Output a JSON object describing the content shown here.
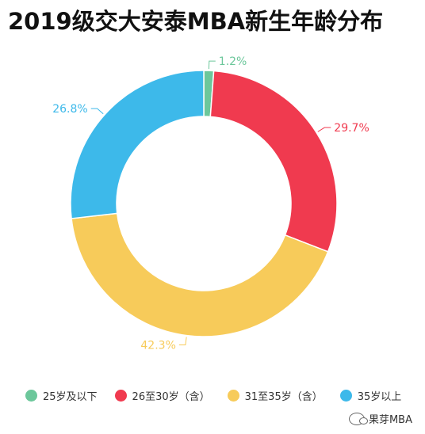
{
  "title": "2019级交大安泰MBA新生年龄分布",
  "chart_data": {
    "type": "pie",
    "title": "2019级交大安泰MBA新生年龄分布",
    "donut": true,
    "legend_position": "bottom",
    "slices": [
      {
        "label": "25岁及以下",
        "value": 1.2,
        "value_label": "1.2%",
        "color": "#6cc79b"
      },
      {
        "label": "26至30岁（含）",
        "value": 29.7,
        "value_label": "29.7%",
        "color": "#f03a4f"
      },
      {
        "label": "31至35岁（含）",
        "value": 42.3,
        "value_label": "42.3%",
        "color": "#f7cb5a"
      },
      {
        "label": "35岁以上",
        "value": 26.8,
        "value_label": "26.8%",
        "color": "#3db9ea"
      }
    ]
  },
  "watermark": {
    "text": "果芽MBA",
    "icon": "wechat-icon"
  }
}
